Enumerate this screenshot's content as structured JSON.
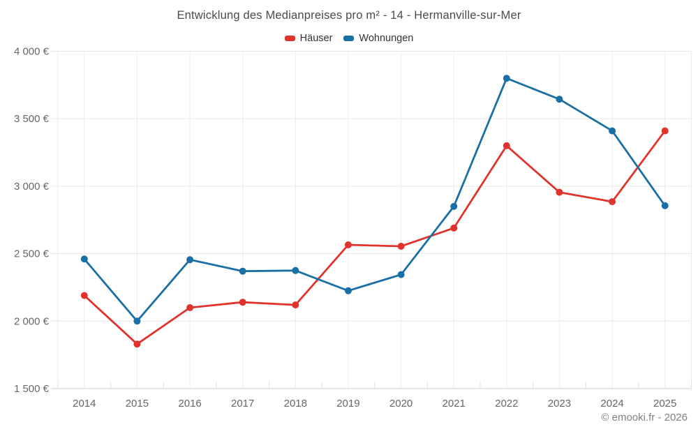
{
  "chart_data": {
    "type": "line",
    "title": "Entwicklung des Medianpreises pro m² - 14 - Hermanville-sur-Mer",
    "xlabel": "",
    "ylabel": "",
    "categories": [
      "2014",
      "2015",
      "2016",
      "2017",
      "2018",
      "2019",
      "2020",
      "2021",
      "2022",
      "2023",
      "2024",
      "2025"
    ],
    "series": [
      {
        "name": "Häuser",
        "color": "#e0332c",
        "values": [
          2190,
          1830,
          2100,
          2140,
          2120,
          2565,
          2555,
          2690,
          3300,
          2955,
          2885,
          3410
        ]
      },
      {
        "name": "Wohnungen",
        "color": "#1a6fa4",
        "values": [
          2460,
          2000,
          2455,
          2370,
          2375,
          2225,
          2345,
          2850,
          3800,
          3645,
          3410,
          2855
        ]
      }
    ],
    "ylim": [
      1500,
      4000
    ],
    "yticks": [
      1500,
      2000,
      2500,
      3000,
      3500,
      4000
    ],
    "ytick_labels": [
      "1 500 €",
      "2 000 €",
      "2 500 €",
      "3 000 €",
      "3 500 €",
      "4 000 €"
    ],
    "grid": true,
    "legend_position": "top"
  },
  "footer": {
    "credit": "© emooki.fr - 2026"
  }
}
